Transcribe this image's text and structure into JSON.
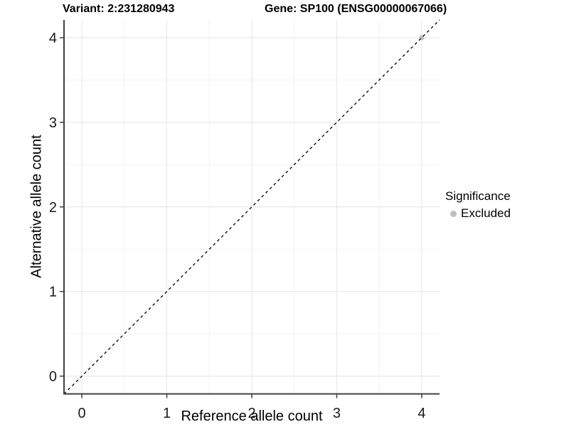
{
  "chart_data": {
    "type": "scatter",
    "title_left": "Variant: 2:231280943",
    "title_right": "Gene: SP100 (ENSG00000067066)",
    "xlabel": "Reference allele count",
    "ylabel": "Alternative allele count",
    "xlim": [
      -0.21,
      4.21
    ],
    "ylim": [
      -0.21,
      4.21
    ],
    "xticks": [
      0,
      1,
      2,
      3,
      4
    ],
    "yticks": [
      0,
      1,
      2,
      3,
      4
    ],
    "minor_ticks": [
      0.5,
      1.5,
      2.5,
      3.5
    ],
    "grid": true,
    "points": [
      {
        "x": 4,
        "y": 4,
        "significance": "Excluded"
      }
    ],
    "reference_line": {
      "kind": "identity",
      "style": "dashed",
      "color": "#000000"
    },
    "legend": {
      "title": "Significance",
      "position": "right",
      "items": [
        {
          "label": "Excluded",
          "color": "#bfbfbf"
        }
      ]
    },
    "colors": {
      "grid_major": "#e6e6e6",
      "grid_minor": "#f2f2f2",
      "axis_line": "#404040",
      "tick_label": "#1a1a1a",
      "point_excluded": "#c0c0c0"
    }
  }
}
